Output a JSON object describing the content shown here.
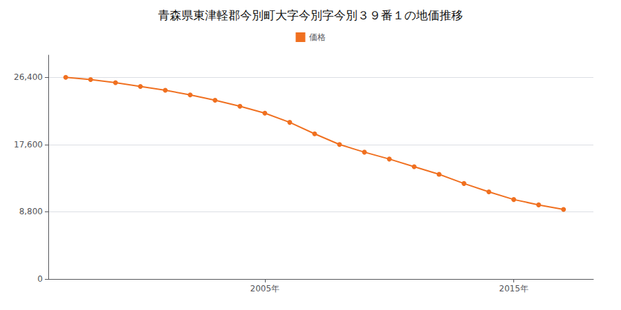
{
  "chart_data": {
    "type": "line",
    "title": "青森県東津軽郡今別町大字今別字今別３９番１の地価推移",
    "x": [
      1997,
      1998,
      1999,
      2000,
      2001,
      2002,
      2003,
      2004,
      2005,
      2006,
      2007,
      2008,
      2009,
      2010,
      2011,
      2012,
      2013,
      2014,
      2015,
      2016,
      2017
    ],
    "series": [
      {
        "name": "価格",
        "color": "#f07020",
        "marker": "circle",
        "values": [
          26400,
          26100,
          25700,
          25200,
          24700,
          24100,
          23400,
          22600,
          21700,
          20500,
          19000,
          17600,
          16600,
          15700,
          14700,
          13700,
          12500,
          11400,
          10400,
          9700,
          9100
        ]
      }
    ],
    "xlim": [
      1996.3,
      2018.2
    ],
    "xticks": [
      {
        "value": 2005,
        "label": "2005年"
      },
      {
        "value": 2015,
        "label": "2015年"
      }
    ],
    "ylim": [
      0,
      29300
    ],
    "yticks": [
      0,
      {
        "value": 8800,
        "label": "8,800"
      },
      {
        "value": 17600,
        "label": "17,600"
      },
      {
        "value": 26400,
        "label": "26,400"
      }
    ],
    "grid": true,
    "legend": "top"
  }
}
